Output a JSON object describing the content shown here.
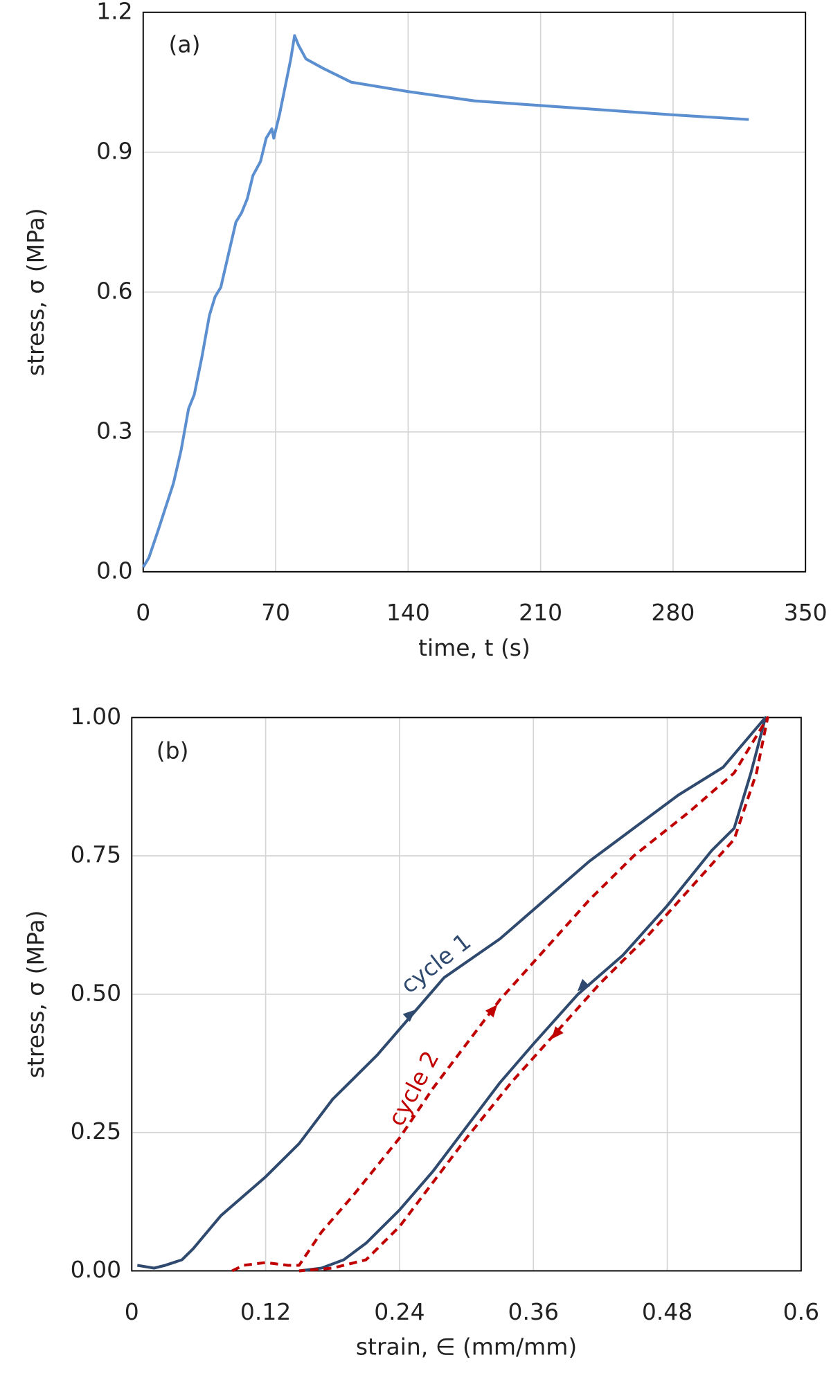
{
  "chart_data": [
    {
      "type": "line",
      "annotation": "(a)",
      "x_label": "time, t (s)",
      "y_label": "stress, σ (MPa)",
      "xlim": [
        0,
        350
      ],
      "xticks": [
        0,
        70,
        140,
        210,
        280,
        350
      ],
      "ylim": [
        0,
        1.2
      ],
      "yticks": [
        {
          "value": 0,
          "label": "0.0"
        },
        0.3,
        0.6,
        0.9,
        1.2
      ],
      "grid": true,
      "x": [
        0,
        3,
        8,
        12,
        16,
        20,
        24,
        27,
        31,
        35,
        38,
        41,
        45,
        49,
        52,
        55,
        58,
        62,
        65,
        68,
        69,
        72,
        75,
        78,
        80,
        82,
        86,
        95,
        110,
        140,
        175,
        210,
        245,
        280,
        320
      ],
      "series": [
        {
          "color": "#5b8fd0",
          "values": [
            0.01,
            0.03,
            0.09,
            0.14,
            0.19,
            0.26,
            0.35,
            0.38,
            0.46,
            0.55,
            0.59,
            0.61,
            0.68,
            0.75,
            0.77,
            0.8,
            0.85,
            0.88,
            0.93,
            0.95,
            0.93,
            0.98,
            1.04,
            1.1,
            1.15,
            1.13,
            1.1,
            1.08,
            1.05,
            1.03,
            1.01,
            1.0,
            0.99,
            0.98,
            0.97
          ]
        }
      ]
    },
    {
      "type": "line",
      "annotation": "(b)",
      "x_label": "strain, ∈ (mm/mm)",
      "y_label": "stress, σ (MPa)",
      "xlim": [
        0,
        0.6
      ],
      "xticks": [
        0,
        0.12,
        0.24,
        0.36,
        0.48,
        0.6
      ],
      "ylim": [
        0,
        1
      ],
      "yticks": [
        {
          "value": 0,
          "label": "0.00"
        },
        0.25,
        {
          "value": 0.5,
          "label": "0.50"
        },
        0.75,
        {
          "value": 1,
          "label": "1.00"
        }
      ],
      "grid": true,
      "series": [
        {
          "name": "cycle 1",
          "color": "#2f4a6e",
          "style": "solid",
          "x": [
            0.005,
            0.02,
            0.03,
            0.045,
            0.055,
            0.08,
            0.12,
            0.15,
            0.18,
            0.22,
            0.25,
            0.28,
            0.33,
            0.37,
            0.41,
            0.45,
            0.49,
            0.53,
            0.568,
            0.555,
            0.54,
            0.52,
            0.48,
            0.44,
            0.4,
            0.36,
            0.33,
            0.3,
            0.27,
            0.24,
            0.21,
            0.19,
            0.17,
            0.15
          ],
          "values": [
            0.01,
            0.005,
            0.01,
            0.02,
            0.04,
            0.1,
            0.17,
            0.23,
            0.31,
            0.39,
            0.46,
            0.53,
            0.6,
            0.67,
            0.74,
            0.8,
            0.86,
            0.91,
            1.0,
            0.9,
            0.8,
            0.76,
            0.66,
            0.57,
            0.5,
            0.41,
            0.34,
            0.26,
            0.18,
            0.11,
            0.05,
            0.02,
            0.005,
            0
          ]
        },
        {
          "name": "cycle 2",
          "color": "#c00000",
          "style": "dashed",
          "x": [
            0.09,
            0.1,
            0.12,
            0.14,
            0.15,
            0.17,
            0.2,
            0.24,
            0.27,
            0.3,
            0.33,
            0.37,
            0.41,
            0.45,
            0.5,
            0.54,
            0.57,
            0.56,
            0.54,
            0.5,
            0.46,
            0.42,
            0.38,
            0.34,
            0.3,
            0.27,
            0.24,
            0.21,
            0.18,
            0.15
          ],
          "values": [
            0,
            0.01,
            0.015,
            0.01,
            0.01,
            0.07,
            0.14,
            0.24,
            0.33,
            0.41,
            0.49,
            0.58,
            0.67,
            0.75,
            0.83,
            0.9,
            1.0,
            0.9,
            0.78,
            0.69,
            0.6,
            0.52,
            0.43,
            0.34,
            0.24,
            0.16,
            0.08,
            0.02,
            0.005,
            0
          ]
        }
      ]
    }
  ]
}
